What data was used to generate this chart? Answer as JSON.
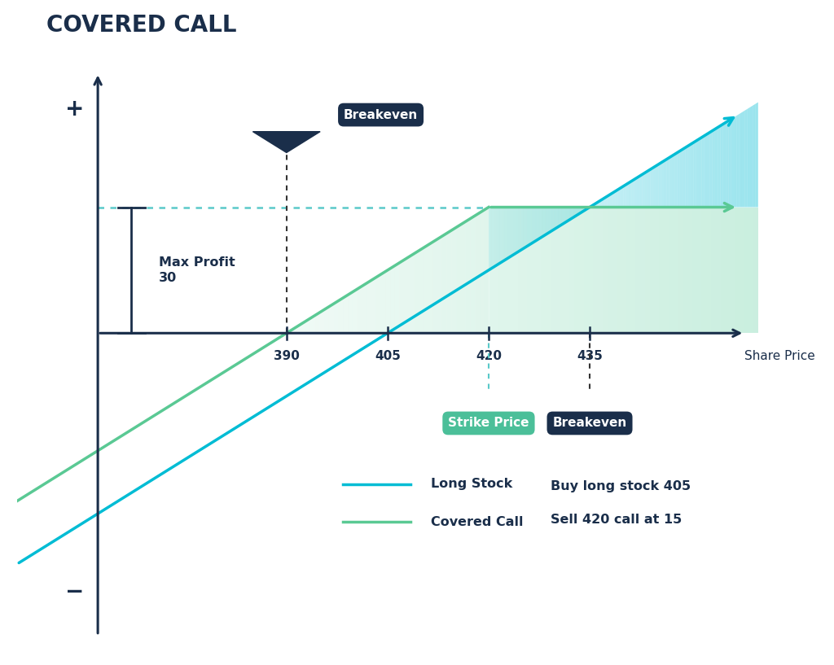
{
  "title": "COVERED CALL",
  "title_fontsize": 20,
  "title_fontweight": "bold",
  "title_color": "#1a2e4a",
  "bg_color": "#ffffff",
  "axis_color": "#1a2e4a",
  "long_stock_color": "#00bcd4",
  "covered_call_color": "#5ac994",
  "max_profit_dotted_color": "#5ac9c9",
  "buy_price": 405,
  "strike_price": 420,
  "premium": 15,
  "breakeven_covered": 390,
  "breakeven_long": 435,
  "max_profit": 30,
  "x_ticks": [
    390,
    405,
    420,
    435
  ],
  "x_min": 350,
  "x_max": 460,
  "y_min": -75,
  "y_max": 65,
  "share_price_label": "Share Price",
  "legend_long_stock": "Long Stock",
  "legend_covered_call": "Covered Call",
  "info_line1": "Buy long stock 405",
  "info_line2": "Sell 420 call at 15",
  "plus_label": "+",
  "minus_label": "−",
  "max_profit_label_line1": "Max Profit",
  "max_profit_label_line2": "30",
  "breakeven_upper_label": "Breakeven",
  "strike_price_label": "Strike Price",
  "breakeven_lower_label": "Breakeven",
  "green_fill_color": "#4dc994",
  "blue_fill_color": "#00bcd4",
  "y_axis_x": 362,
  "x_axis_y": 0
}
